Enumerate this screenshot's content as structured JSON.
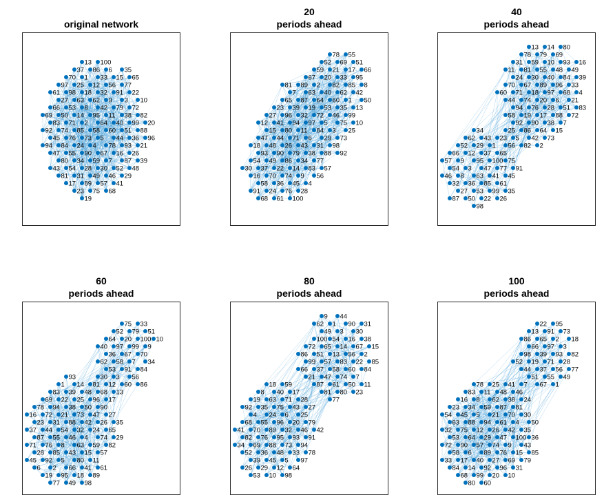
{
  "chart_data": [
    {
      "type": "network",
      "title_line1": "",
      "title_line2": "original network",
      "num_nodes": 100,
      "layout": "single-cluster"
    },
    {
      "type": "network",
      "title_line1": "20",
      "title_line2": "periods ahead",
      "num_nodes": 100,
      "layout": "elongated"
    },
    {
      "type": "network",
      "title_line1": "40",
      "title_line2": "periods ahead",
      "num_nodes": 100,
      "layout": "two-cluster"
    },
    {
      "type": "network",
      "title_line1": "60",
      "title_line2": "periods ahead",
      "num_nodes": 100,
      "layout": "two-cluster"
    },
    {
      "type": "network",
      "title_line1": "80",
      "title_line2": "periods ahead",
      "num_nodes": 100,
      "layout": "two-cluster"
    },
    {
      "type": "network",
      "title_line1": "100",
      "title_line2": "periods ahead",
      "num_nodes": 100,
      "layout": "two-cluster"
    }
  ],
  "colors": {
    "node": "#0072BD",
    "edge": "#4A9FD8"
  }
}
